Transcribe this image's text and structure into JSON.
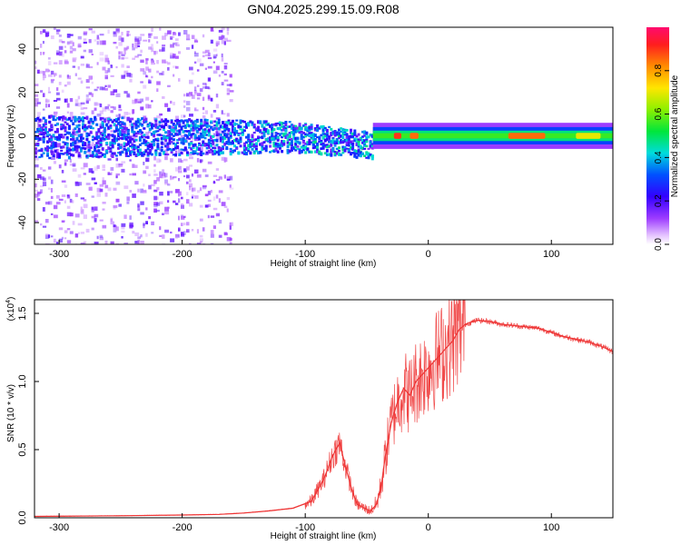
{
  "figure": {
    "title": "GN04.2025.299.15.09.R08"
  },
  "chart_data": [
    {
      "type": "heatmap",
      "name": "spectrogram",
      "title": "GN04.2025.299.15.09.R08",
      "xlabel": "Height of straight line (km)",
      "ylabel": "Frequency (Hz)",
      "xlim": [
        -320,
        150
      ],
      "ylim": [
        -50,
        50
      ],
      "xticks": [
        -300,
        -200,
        -100,
        0,
        100
      ],
      "yticks": [
        -40,
        -20,
        0,
        20,
        40
      ],
      "features": {
        "scatter_region_x": [
          -320,
          -160
        ],
        "broadband_band": {
          "x": [
            -320,
            -45
          ],
          "halfwidth_hz": [
            10,
            6
          ]
        },
        "line_region_x": [
          -45,
          150
        ],
        "line_center_hz": 0,
        "line_halfwidth_hz": 2,
        "peak_segments": [
          {
            "x": [
              -28,
              -22
            ],
            "amp": 0.9
          },
          {
            "x": [
              -15,
              -8
            ],
            "amp": 0.85
          },
          {
            "x": [
              65,
              95
            ],
            "amp": 0.85
          },
          {
            "x": [
              120,
              140
            ],
            "amp": 0.7
          }
        ]
      },
      "colorbar": {
        "label": "Normalized spectral amplitude",
        "ticks": [
          "0.0",
          "0.2",
          "0.4",
          "0.6",
          "0.8"
        ],
        "tick_values": [
          0.0,
          0.2,
          0.4,
          0.6,
          0.8
        ],
        "range": [
          0,
          1
        ]
      }
    },
    {
      "type": "line",
      "name": "snr",
      "xlabel": "Height of straight line (km)",
      "ylabel": "SNR (10 * v/v)",
      "multiplier_label": "(x10",
      "multiplier_exp": "4",
      "multiplier_close": ")",
      "xlim": [
        -320,
        150
      ],
      "ylim": [
        0,
        1.6
      ],
      "xticks": [
        -300,
        -200,
        -100,
        0,
        100
      ],
      "yticks": [
        "0.0",
        "0.5",
        "1.0",
        "1.5"
      ],
      "ytick_values": [
        0,
        0.5,
        1.0,
        1.5
      ],
      "color": "#ee3333",
      "series": [
        {
          "name": "SNR",
          "x": [
            -320,
            -250,
            -200,
            -170,
            -150,
            -130,
            -110,
            -95,
            -85,
            -78,
            -72,
            -68,
            -62,
            -58,
            -52,
            -47,
            -42,
            -38,
            -35,
            -30,
            -25,
            -20,
            -15,
            -10,
            -5,
            0,
            5,
            10,
            15,
            20,
            25,
            30,
            40,
            50,
            60,
            70,
            80,
            90,
            100,
            110,
            120,
            130,
            140,
            150
          ],
          "y": [
            0.01,
            0.015,
            0.02,
            0.025,
            0.035,
            0.05,
            0.07,
            0.12,
            0.28,
            0.45,
            0.55,
            0.4,
            0.2,
            0.1,
            0.07,
            0.05,
            0.1,
            0.25,
            0.45,
            0.7,
            0.85,
            0.95,
            0.9,
            1.0,
            1.05,
            1.1,
            1.15,
            1.2,
            1.25,
            1.3,
            1.38,
            1.42,
            1.45,
            1.44,
            1.42,
            1.41,
            1.4,
            1.39,
            1.36,
            1.33,
            1.31,
            1.29,
            1.26,
            1.22
          ]
        }
      ]
    }
  ],
  "colors": {
    "axes": "#000000",
    "snr_line": "#ee3333"
  }
}
